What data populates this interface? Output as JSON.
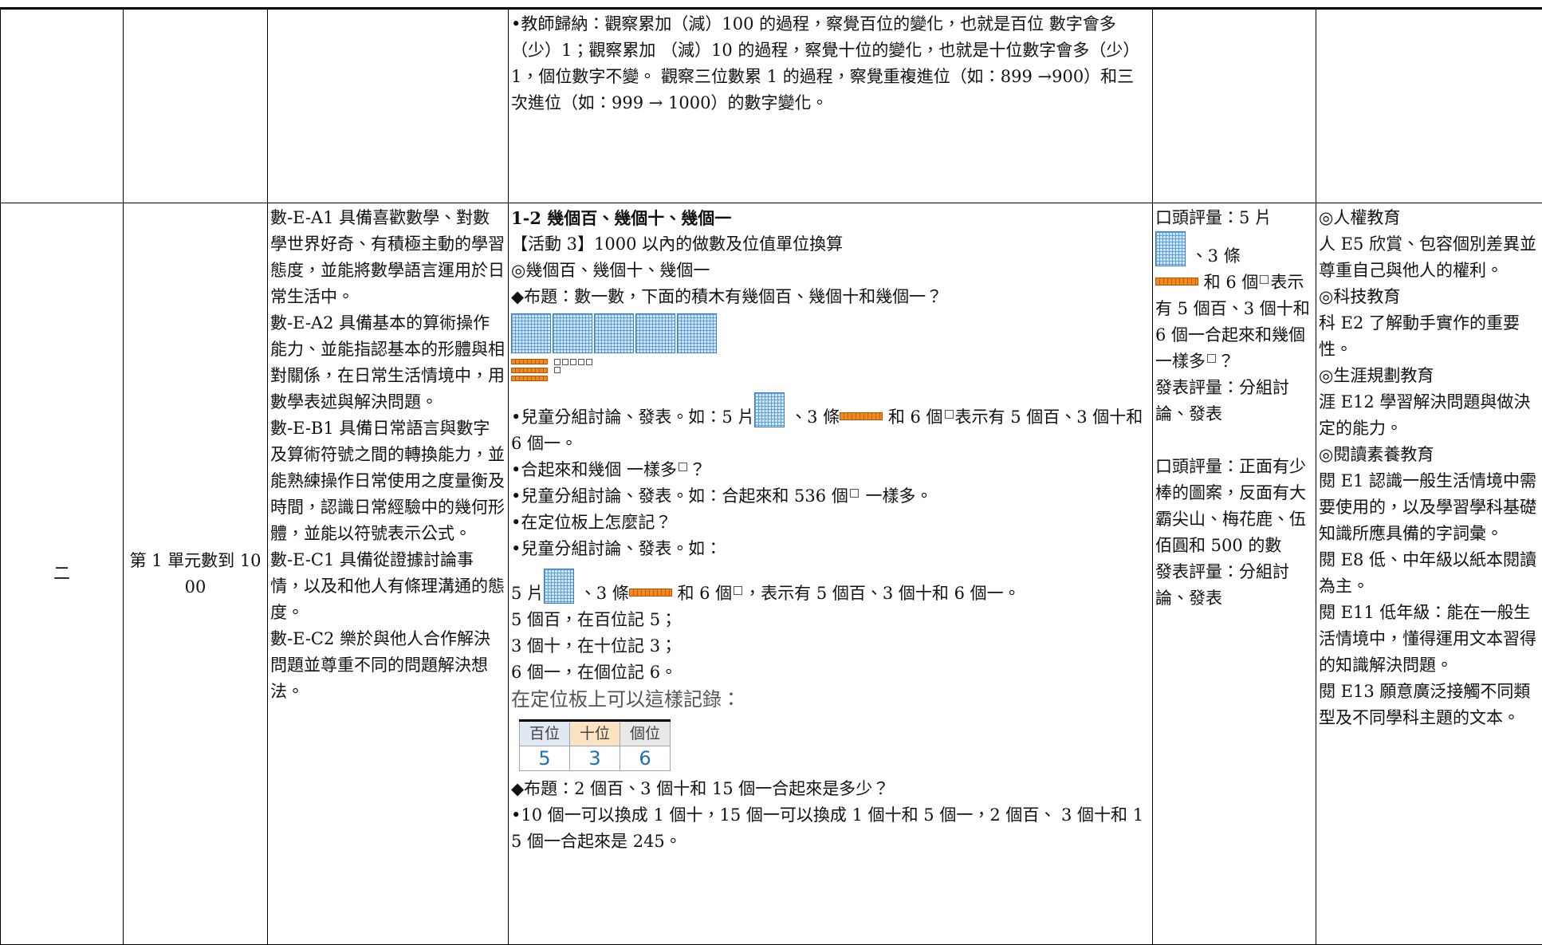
{
  "table": {
    "rows": [
      {
        "activity": "•教師歸納：觀察累加（減）100 的過程，察覺百位的變化，也就是百位 數字會多（少）1；觀察累加 （減）10 的過程，察覺十位的變化，也就是十位數字會多（少）1，個位數字不變。 觀察三位數累 1 的過程，察覺重複進位（如：899 →900）和三次進位（如：999 → 1000）的數字變化。"
      },
      {
        "week": "二",
        "unit": "第 1 單元數到 1000",
        "competencies": [
          "數-E-A1 具備喜歡數學、對數學世界好奇、有積極主動的學習態度，並能將數學語言運用於日常生活中。",
          "數-E-A2 具備基本的算術操作能力、並能指認基本的形體與相對關係，在日常生活情境中，用數學表述與解決問題。",
          "數-E-B1 具備日常語言與數字及算術符號之間的轉換能力，並能熟練操作日常使用之度量衡及時間，認識日常經驗中的幾何形體，並能以符號表示公式。",
          "數-E-C1 具備從證據討論事情，以及和他人有條理溝通的態度。",
          "數-E-C2 樂於與他人合作解決問題並尊重不同的問題解決想法。"
        ],
        "activity": [
          "1-2 幾個百、幾個十、幾個一",
          "【活動 3】1000 以內的做數及位值單位換算",
          "◎幾個百、幾個十、幾個一",
          "◆布題：數一數，下面的積木有幾個百、幾個十和幾個一？",
          [
            "•兒童分組討論、發表。如：5 片",
            " 、3 條",
            " 和 6 個",
            "表示有 5 個百、3 個十和 6 個一。"
          ],
          [
            "•合起來和幾個 一樣多",
            "？"
          ],
          [
            "•兒童分組討論、發表。如：合起來和 536 個",
            " 一樣多。"
          ],
          "•在定位板上怎麼記？",
          "•兒童分組討論、發表。如：",
          [
            "5 片",
            " 、3 條",
            " 和 6 個",
            "，表示有 5 個百、3 個十和 6 個一。"
          ],
          "5 個百，在百位記 5；",
          "3 個十，在十位記 3；",
          "6 個一，在個位記 6。",
          "在定位板上可以這樣記錄："
        ],
        "place_value": {
          "headers": [
            "百位",
            "十位",
            "個位"
          ],
          "digits": [
            5,
            3,
            6
          ]
        },
        "activity_end": [
          "◆布題：2 個百、3 個十和 15 個一合起來是多少？",
          "•10 個一可以換成 1 個十，15 個一可以換成 1 個十和 5 個一，2 個百、 3 個十和 15 個一合起來是 245。"
        ],
        "assessment": [
          [
            "口頭評量：5 片",
            " 、3 條",
            " 和 6 個",
            "表示有 5 個百、3 個十和 6 個一合起來和幾個一樣多",
            "？"
          ],
          "發表評量：分組討論、發表",
          "口頭評量：正面有少棒的圖案，反面有大霸尖山、梅花鹿、伍佰圓和 500 的數",
          "發表評量：分組討論、發表"
        ],
        "issues": [
          "◎人權教育",
          "人 E5 欣賞、包容個別差異並尊重自己與他人的權利。",
          "◎科技教育",
          "科 E2 了解動手實作的重要性。",
          "◎生涯規劃教育",
          "涯 E12 學習解決問題與做決定的能力。",
          "◎閱讀素養教育",
          "閱 E1 認識一般生活情境中需要使用的，以及學習學科基礎知識所應具備的字詞彙。",
          "閱 E8 低、中年級以紙本閱讀為主。",
          "閱 E11 低年級：能在一般生活情境中，懂得運用文本習得的知識解決問題。",
          "閱 E13 願意廣泛接觸不同類型及不同學科主題的文本。"
        ]
      }
    ]
  }
}
